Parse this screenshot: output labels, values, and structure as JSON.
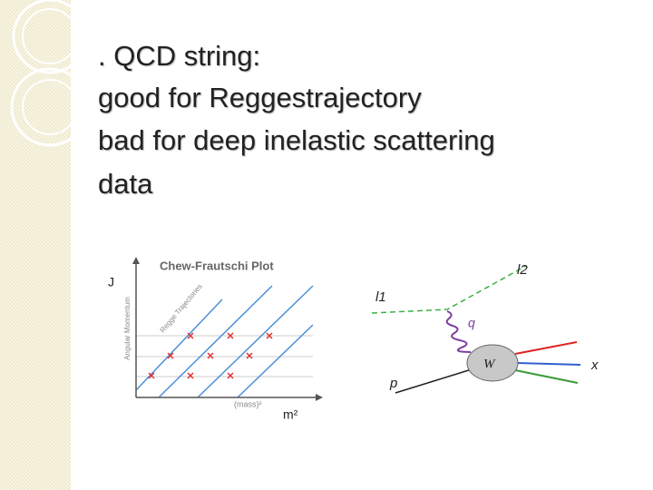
{
  "slide": {
    "lines": [
      ". QCD string:",
      "good for Reggestrajectory",
      "bad for deep inelastic scattering",
      "data"
    ],
    "regge_plot": {
      "title": "Chew-Frautschi Plot",
      "y_label": "J",
      "y_axis_label": "Angular Momentum",
      "x_axis_label": "(mass)²",
      "x_label": "m²",
      "trajectories_label": "Regge Trajectories"
    },
    "dis_diagram": {
      "l2": "l2",
      "l1": "l1",
      "q": "q",
      "p": "p",
      "w": "W",
      "x": "x"
    }
  }
}
